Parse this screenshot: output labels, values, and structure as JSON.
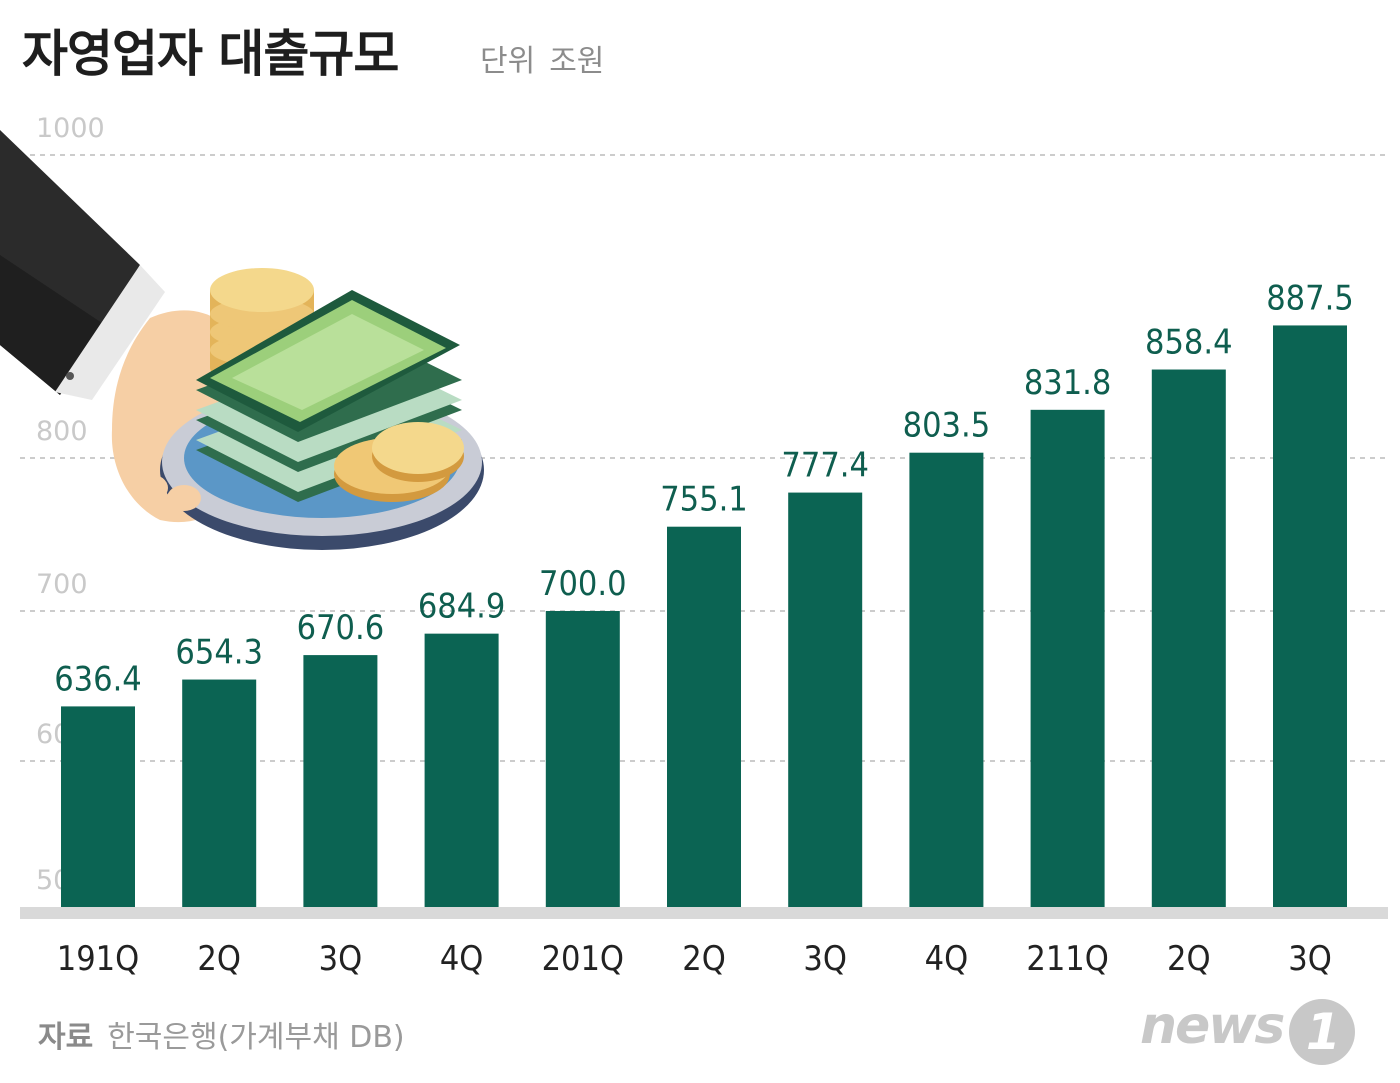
{
  "header": {
    "title": "자영업자 대출규모",
    "unit_label": "단위",
    "unit_value": "조원"
  },
  "footer": {
    "source_label": "자료",
    "source_text": "한국은행(가계부채 DB)",
    "logo_text": "news",
    "logo_mark": "1"
  },
  "illustration": {
    "icon": "hand-holding-money-plate-icon"
  },
  "colors": {
    "bar": "#0b6453",
    "value_label": "#0f5e4f",
    "grid": "#cccccc",
    "baseline": "#d9d9d9"
  },
  "chart_data": {
    "type": "bar",
    "title": "자영업자 대출규모",
    "unit": "조원",
    "categories": [
      "191Q",
      "2Q",
      "3Q",
      "4Q",
      "201Q",
      "2Q",
      "3Q",
      "4Q",
      "211Q",
      "2Q",
      "3Q"
    ],
    "values": [
      636.4,
      654.3,
      670.6,
      684.9,
      700.0,
      755.1,
      777.4,
      803.5,
      831.8,
      858.4,
      887.5
    ],
    "value_labels": [
      "636.4",
      "654.3",
      "670.6",
      "684.9",
      "700.0",
      "755.1",
      "777.4",
      "803.5",
      "831.8",
      "858.4",
      "887.5"
    ],
    "yticks": [
      "1000",
      "800",
      "700",
      "600",
      "500"
    ],
    "ylim": [
      500,
      1000
    ],
    "grid": true,
    "legend": "none"
  }
}
